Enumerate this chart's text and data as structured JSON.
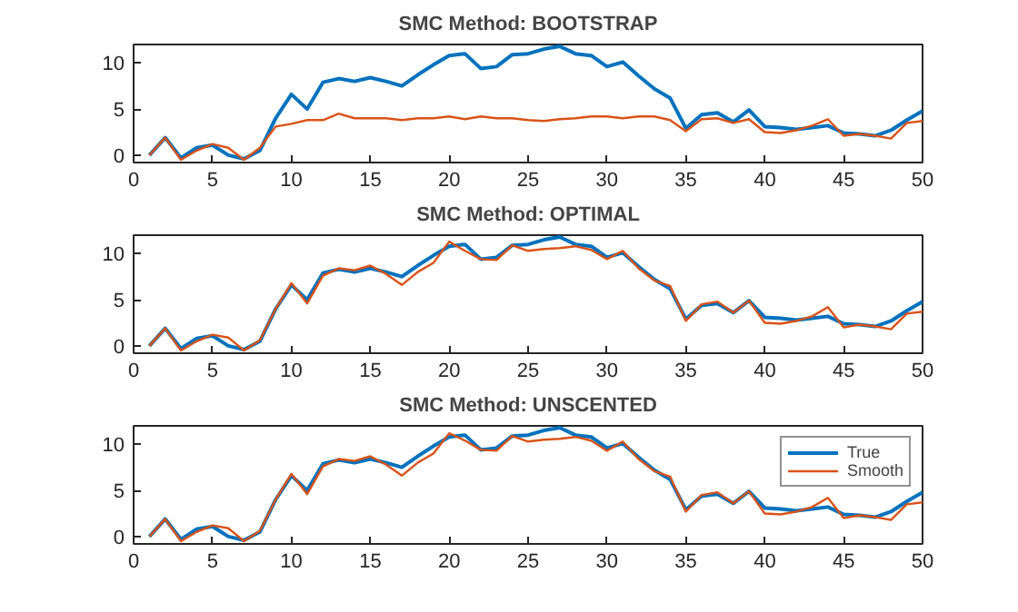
{
  "chart_data": [
    {
      "type": "line",
      "title": "SMC Method: BOOTSTRAP",
      "x": [
        1,
        2,
        3,
        4,
        5,
        6,
        7,
        8,
        9,
        10,
        11,
        12,
        13,
        14,
        15,
        16,
        17,
        18,
        19,
        20,
        21,
        22,
        23,
        24,
        25,
        26,
        27,
        28,
        29,
        30,
        31,
        32,
        33,
        34,
        35,
        36,
        37,
        38,
        39,
        40,
        41,
        42,
        43,
        44,
        45,
        46,
        47,
        48,
        49,
        50
      ],
      "xlim": [
        0,
        50
      ],
      "xticks": [
        0,
        5,
        10,
        15,
        20,
        25,
        30,
        35,
        40,
        45,
        50
      ],
      "ylim": [
        -0.8,
        12
      ],
      "yticks": [
        0,
        5,
        10
      ],
      "grid": false,
      "legend": false,
      "series": [
        {
          "color": "#0072bd",
          "values": [
            0,
            1.9,
            -0.3,
            0.8,
            1.1,
            0,
            -0.4,
            0.5,
            4.0,
            6.6,
            5.0,
            7.9,
            8.3,
            8.0,
            8.4,
            8.0,
            7.5,
            8.7,
            9.8,
            10.8,
            11.0,
            9.4,
            9.6,
            10.9,
            11.0,
            11.5,
            11.8,
            11.0,
            10.8,
            9.6,
            10.1,
            8.6,
            7.2,
            6.2,
            2.9,
            4.4,
            4.6,
            3.6,
            4.9,
            3.1,
            3.0,
            2.8,
            3.0,
            3.2,
            2.4,
            2.3,
            2.1,
            2.7,
            3.8,
            4.8
          ]
        },
        {
          "color": "#d95319",
          "values": [
            0,
            1.9,
            -0.5,
            0.5,
            1.2,
            0.8,
            -0.5,
            0.8,
            3.1,
            3.4,
            3.8,
            3.8,
            4.5,
            4.0,
            4.0,
            4.0,
            3.8,
            4.0,
            4.0,
            4.2,
            3.9,
            4.2,
            4.0,
            4.0,
            3.8,
            3.7,
            3.9,
            4.0,
            4.2,
            4.2,
            4.0,
            4.2,
            4.2,
            3.8,
            2.6,
            3.9,
            4.0,
            3.5,
            3.9,
            2.5,
            2.4,
            2.7,
            3.2,
            3.9,
            2.1,
            2.3,
            2.1,
            1.8,
            3.5,
            3.7
          ]
        }
      ]
    },
    {
      "type": "line",
      "title": "SMC Method: OPTIMAL",
      "x": [
        1,
        2,
        3,
        4,
        5,
        6,
        7,
        8,
        9,
        10,
        11,
        12,
        13,
        14,
        15,
        16,
        17,
        18,
        19,
        20,
        21,
        22,
        23,
        24,
        25,
        26,
        27,
        28,
        29,
        30,
        31,
        32,
        33,
        34,
        35,
        36,
        37,
        38,
        39,
        40,
        41,
        42,
        43,
        44,
        45,
        46,
        47,
        48,
        49,
        50
      ],
      "xlim": [
        0,
        50
      ],
      "xticks": [
        0,
        5,
        10,
        15,
        20,
        25,
        30,
        35,
        40,
        45,
        50
      ],
      "ylim": [
        -0.8,
        12
      ],
      "yticks": [
        0,
        5,
        10
      ],
      "grid": false,
      "legend": false,
      "series": [
        {
          "color": "#0072bd",
          "values": [
            0,
            1.9,
            -0.3,
            0.8,
            1.1,
            0,
            -0.4,
            0.5,
            4.0,
            6.6,
            5.0,
            7.9,
            8.3,
            8.0,
            8.4,
            8.0,
            7.5,
            8.7,
            9.8,
            10.8,
            11.0,
            9.4,
            9.6,
            10.9,
            11.0,
            11.5,
            11.8,
            11.0,
            10.8,
            9.6,
            10.1,
            8.6,
            7.2,
            6.2,
            2.9,
            4.4,
            4.6,
            3.6,
            4.9,
            3.1,
            3.0,
            2.8,
            3.0,
            3.2,
            2.4,
            2.3,
            2.1,
            2.7,
            3.8,
            4.8
          ]
        },
        {
          "color": "#d95319",
          "values": [
            0,
            1.9,
            -0.5,
            0.5,
            1.2,
            0.9,
            -0.5,
            0.6,
            4.0,
            6.8,
            4.6,
            7.6,
            8.4,
            8.2,
            8.7,
            7.8,
            6.6,
            8.0,
            9.0,
            11.3,
            10.3,
            9.4,
            9.3,
            10.9,
            10.3,
            10.5,
            10.6,
            10.8,
            10.4,
            9.4,
            10.3,
            8.4,
            7.1,
            6.5,
            2.7,
            4.5,
            4.8,
            3.6,
            4.9,
            2.5,
            2.4,
            2.7,
            3.2,
            4.2,
            2.0,
            2.3,
            2.1,
            1.8,
            3.5,
            3.7
          ]
        }
      ]
    },
    {
      "type": "line",
      "title": "SMC Method: UNSCENTED",
      "x": [
        1,
        2,
        3,
        4,
        5,
        6,
        7,
        8,
        9,
        10,
        11,
        12,
        13,
        14,
        15,
        16,
        17,
        18,
        19,
        20,
        21,
        22,
        23,
        24,
        25,
        26,
        27,
        28,
        29,
        30,
        31,
        32,
        33,
        34,
        35,
        36,
        37,
        38,
        39,
        40,
        41,
        42,
        43,
        44,
        45,
        46,
        47,
        48,
        49,
        50
      ],
      "xlim": [
        0,
        50
      ],
      "xticks": [
        0,
        5,
        10,
        15,
        20,
        25,
        30,
        35,
        40,
        45,
        50
      ],
      "ylim": [
        -0.8,
        12
      ],
      "yticks": [
        0,
        5,
        10
      ],
      "grid": false,
      "legend": "top right",
      "series": [
        {
          "name": "True",
          "color": "#0072bd",
          "values": [
            0,
            1.9,
            -0.3,
            0.8,
            1.1,
            0,
            -0.4,
            0.5,
            4.0,
            6.6,
            5.0,
            7.9,
            8.3,
            8.0,
            8.4,
            8.0,
            7.5,
            8.7,
            9.8,
            10.8,
            11.0,
            9.4,
            9.6,
            10.9,
            11.0,
            11.5,
            11.8,
            11.0,
            10.8,
            9.6,
            10.1,
            8.6,
            7.2,
            6.2,
            2.9,
            4.4,
            4.6,
            3.6,
            4.9,
            3.1,
            3.0,
            2.8,
            3.0,
            3.2,
            2.4,
            2.3,
            2.1,
            2.7,
            3.8,
            4.8
          ]
        },
        {
          "name": "Smooth",
          "color": "#d95319",
          "values": [
            0,
            1.9,
            -0.5,
            0.5,
            1.2,
            0.9,
            -0.5,
            0.6,
            4.0,
            6.8,
            4.6,
            7.6,
            8.4,
            8.2,
            8.7,
            7.8,
            6.6,
            8.0,
            9.0,
            11.2,
            10.4,
            9.4,
            9.3,
            10.9,
            10.3,
            10.5,
            10.6,
            10.8,
            10.4,
            9.3,
            10.3,
            8.4,
            7.1,
            6.5,
            2.7,
            4.5,
            4.8,
            3.6,
            4.9,
            2.5,
            2.4,
            2.7,
            3.2,
            4.2,
            2.0,
            2.3,
            2.1,
            1.8,
            3.5,
            3.7
          ]
        }
      ]
    }
  ]
}
